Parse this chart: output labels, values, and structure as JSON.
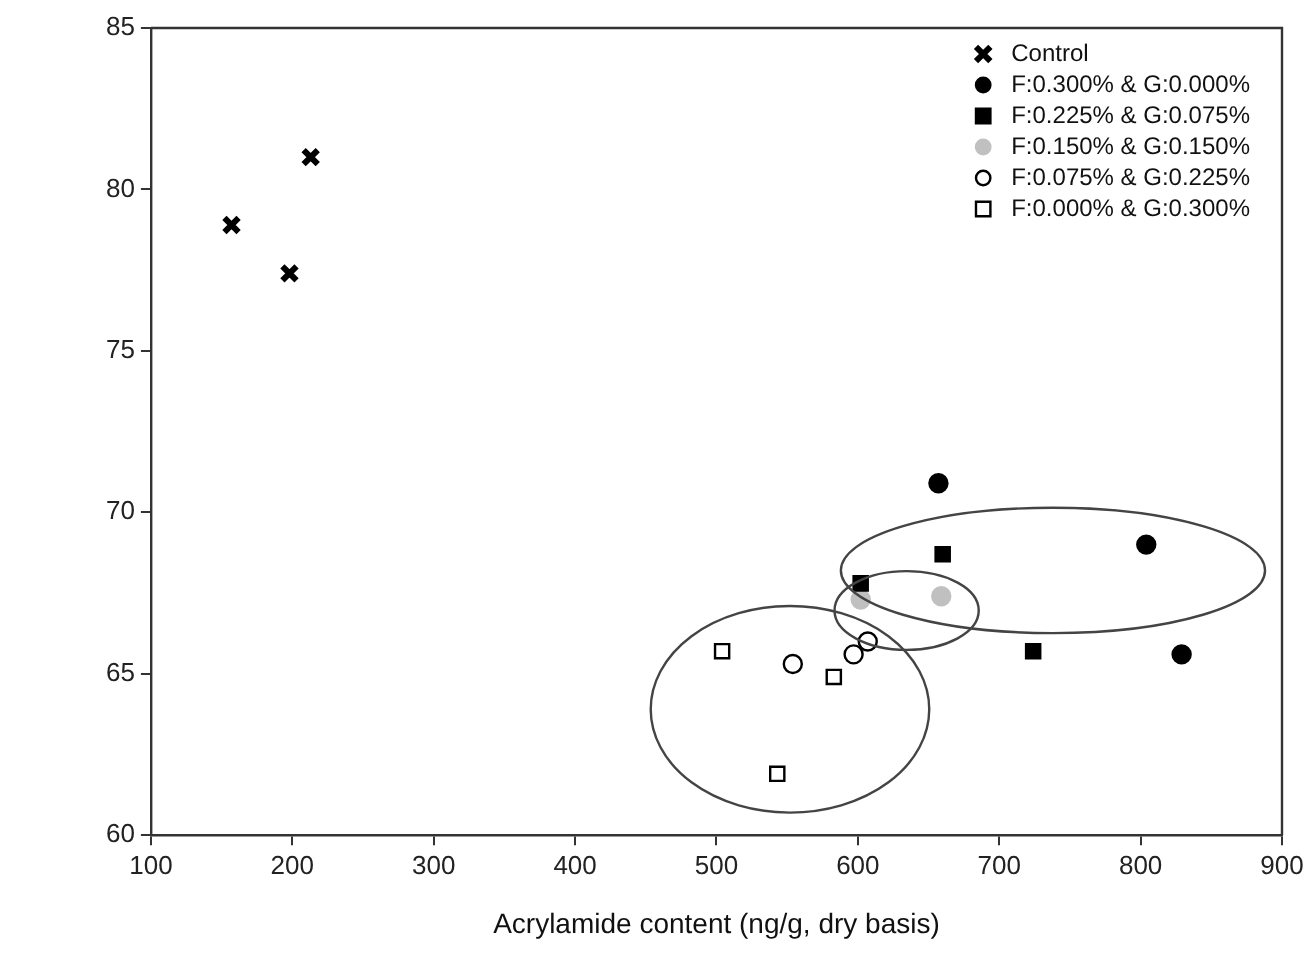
{
  "chart_data": {
    "type": "scatter",
    "xlabel": "Acrylamide content (ng/g, dry basis)",
    "xlim": [
      100,
      900
    ],
    "xticks": [
      100,
      200,
      300,
      400,
      500,
      600,
      700,
      800,
      900
    ],
    "ylim": [
      60,
      85
    ],
    "yticks": [
      60,
      65,
      70,
      75,
      80,
      85
    ],
    "grid": false,
    "legend": "top right",
    "series": [
      {
        "name": "Control",
        "color": "#000000",
        "marker": "cross",
        "x": [
          157,
          198,
          213
        ],
        "values": [
          78.9,
          77.4,
          81.0
        ]
      },
      {
        "name": "F:0.300% & G:0.000%",
        "color": "#000000",
        "marker": "circle",
        "x": [
          657,
          804,
          829
        ],
        "values": [
          70.9,
          69.0,
          65.6
        ]
      },
      {
        "name": "F:0.225% & G:0.075%",
        "color": "#000000",
        "marker": "square",
        "x": [
          660,
          602,
          724
        ],
        "values": [
          68.7,
          67.8,
          65.7
        ]
      },
      {
        "name": "F:0.150% & G:0.150%",
        "color": "#c0c0c0",
        "marker": "circle",
        "x": [
          602,
          659
        ],
        "values": [
          67.3,
          67.4
        ]
      },
      {
        "name": "F:0.075% & G:0.225%",
        "color": "#ffffff",
        "marker": "circle",
        "x": [
          554,
          597,
          607
        ],
        "values": [
          65.3,
          65.6,
          66.0
        ]
      },
      {
        "name": "F:0.000% & G:0.300%",
        "color": "#ffffff",
        "marker": "square",
        "x": [
          504,
          583,
          543
        ],
        "values": [
          65.7,
          64.9,
          61.9
        ]
      }
    ]
  }
}
